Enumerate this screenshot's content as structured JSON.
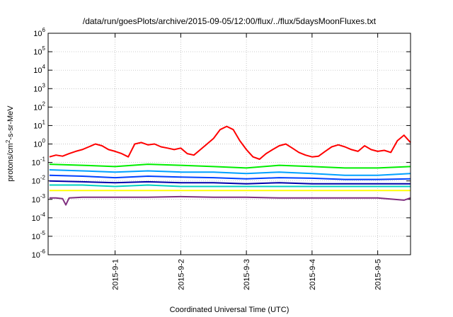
{
  "chart_data": {
    "type": "line",
    "title": "/data/run/goesPlots/archive/2015-09-05/12:00/flux/../flux/5daysMoonFluxes.txt",
    "xlabel": "Coordinated Universal Time (UTC)",
    "ylabel_base": "protons/cm",
    "ylabel_sup": "2",
    "ylabel_rest": "-s-sr-MeV",
    "yscale": "log",
    "ylim": [
      1e-06,
      1000000.0
    ],
    "grid": true,
    "x_ticks": [
      "2015-9-1",
      "2015-9-2",
      "2015-9-3",
      "2015-9-4",
      "2015-9-5"
    ],
    "y_ticks": [
      {
        "base": "10",
        "exp": "-6"
      },
      {
        "base": "10",
        "exp": "-5"
      },
      {
        "base": "10",
        "exp": "-4"
      },
      {
        "base": "10",
        "exp": "-3"
      },
      {
        "base": "10",
        "exp": "-2"
      },
      {
        "base": "10",
        "exp": "-1"
      },
      {
        "base": "10",
        "exp": "0"
      },
      {
        "base": "10",
        "exp": "1"
      },
      {
        "base": "10",
        "exp": "2"
      },
      {
        "base": "10",
        "exp": "3"
      },
      {
        "base": "10",
        "exp": "4"
      },
      {
        "base": "10",
        "exp": "5"
      },
      {
        "base": "10",
        "exp": "6"
      }
    ],
    "series": [
      {
        "color": "#ff0000",
        "x": [
          0,
          0.1,
          0.2,
          0.3,
          0.4,
          0.5,
          0.6,
          0.7,
          0.8,
          0.9,
          1.0,
          1.1,
          1.2,
          1.3,
          1.4,
          1.5,
          1.6,
          1.7,
          1.8,
          1.9,
          2.0,
          2.1,
          2.2,
          2.3,
          2.4,
          2.5,
          2.6,
          2.7,
          2.8,
          2.9,
          3.0,
          3.1,
          3.2,
          3.3,
          3.4,
          3.5,
          3.6,
          3.7,
          3.8,
          3.9,
          4.0,
          4.1,
          4.2,
          4.3,
          4.4,
          4.5,
          4.6,
          4.7,
          4.8,
          4.9,
          5.0,
          5.1,
          5.2,
          5.3,
          5.4,
          5.5
        ],
        "y": [
          0.2,
          0.25,
          0.22,
          0.3,
          0.4,
          0.5,
          0.7,
          1.0,
          0.8,
          0.5,
          0.4,
          0.3,
          0.2,
          1.0,
          1.2,
          0.9,
          1.0,
          0.7,
          0.6,
          0.5,
          0.6,
          0.3,
          0.25,
          0.5,
          1.0,
          2.0,
          6.0,
          9.0,
          6.0,
          1.5,
          0.5,
          0.2,
          0.15,
          0.3,
          0.5,
          0.8,
          1.0,
          0.6,
          0.35,
          0.25,
          0.2,
          0.22,
          0.4,
          0.7,
          0.9,
          0.7,
          0.5,
          0.4,
          0.8,
          0.5,
          0.4,
          0.45,
          0.35,
          1.5,
          3.0,
          1.2
        ]
      },
      {
        "color": "#00ee00",
        "x": [
          0,
          0.5,
          1.0,
          1.5,
          2.0,
          2.5,
          3.0,
          3.5,
          4.0,
          4.5,
          5.0,
          5.5
        ],
        "y": [
          0.08,
          0.07,
          0.06,
          0.08,
          0.07,
          0.06,
          0.05,
          0.07,
          0.06,
          0.05,
          0.05,
          0.06
        ]
      },
      {
        "color": "#00a0ff",
        "x": [
          0,
          0.5,
          1.0,
          1.5,
          2.0,
          2.5,
          3.0,
          3.5,
          4.0,
          4.5,
          5.0,
          5.5
        ],
        "y": [
          0.04,
          0.035,
          0.03,
          0.035,
          0.03,
          0.03,
          0.025,
          0.03,
          0.025,
          0.02,
          0.02,
          0.025
        ]
      },
      {
        "color": "#0040ff",
        "x": [
          0,
          0.5,
          1.0,
          1.5,
          2.0,
          2.5,
          3.0,
          3.5,
          4.0,
          4.5,
          5.0,
          5.5
        ],
        "y": [
          0.02,
          0.018,
          0.015,
          0.018,
          0.016,
          0.015,
          0.013,
          0.015,
          0.014,
          0.012,
          0.012,
          0.013
        ]
      },
      {
        "color": "#0000aa",
        "x": [
          0,
          0.5,
          1.0,
          1.5,
          2.0,
          2.5,
          3.0,
          3.5,
          4.0,
          4.5,
          5.0,
          5.5
        ],
        "y": [
          0.01,
          0.009,
          0.008,
          0.009,
          0.008,
          0.008,
          0.007,
          0.008,
          0.007,
          0.007,
          0.007,
          0.007
        ]
      },
      {
        "color": "#00d0c0",
        "x": [
          0,
          0.5,
          1.0,
          1.5,
          2.0,
          2.5,
          3.0,
          3.5,
          4.0,
          4.5,
          5.0,
          5.5
        ],
        "y": [
          0.006,
          0.006,
          0.005,
          0.006,
          0.005,
          0.005,
          0.005,
          0.005,
          0.005,
          0.005,
          0.005,
          0.005
        ]
      },
      {
        "color": "#ffff00",
        "x": [
          0,
          0.5,
          1.0,
          1.5,
          2.0,
          2.5,
          3.0,
          3.5,
          4.0,
          4.5,
          5.0,
          5.5
        ],
        "y": [
          0.003,
          0.003,
          0.003,
          0.003,
          0.003,
          0.003,
          0.003,
          0.003,
          0.003,
          0.003,
          0.003,
          0.003
        ]
      },
      {
        "color": "#803080",
        "x": [
          0,
          0.1,
          0.2,
          0.25,
          0.3,
          0.5,
          1.0,
          1.5,
          2.0,
          2.5,
          3.0,
          3.5,
          4.0,
          4.5,
          5.0,
          5.4,
          5.5
        ],
        "y": [
          0.0012,
          0.0012,
          0.0011,
          0.0005,
          0.0012,
          0.0013,
          0.0013,
          0.0013,
          0.0014,
          0.0013,
          0.0013,
          0.0012,
          0.0012,
          0.0012,
          0.0012,
          0.0009,
          0.0012
        ]
      }
    ]
  }
}
